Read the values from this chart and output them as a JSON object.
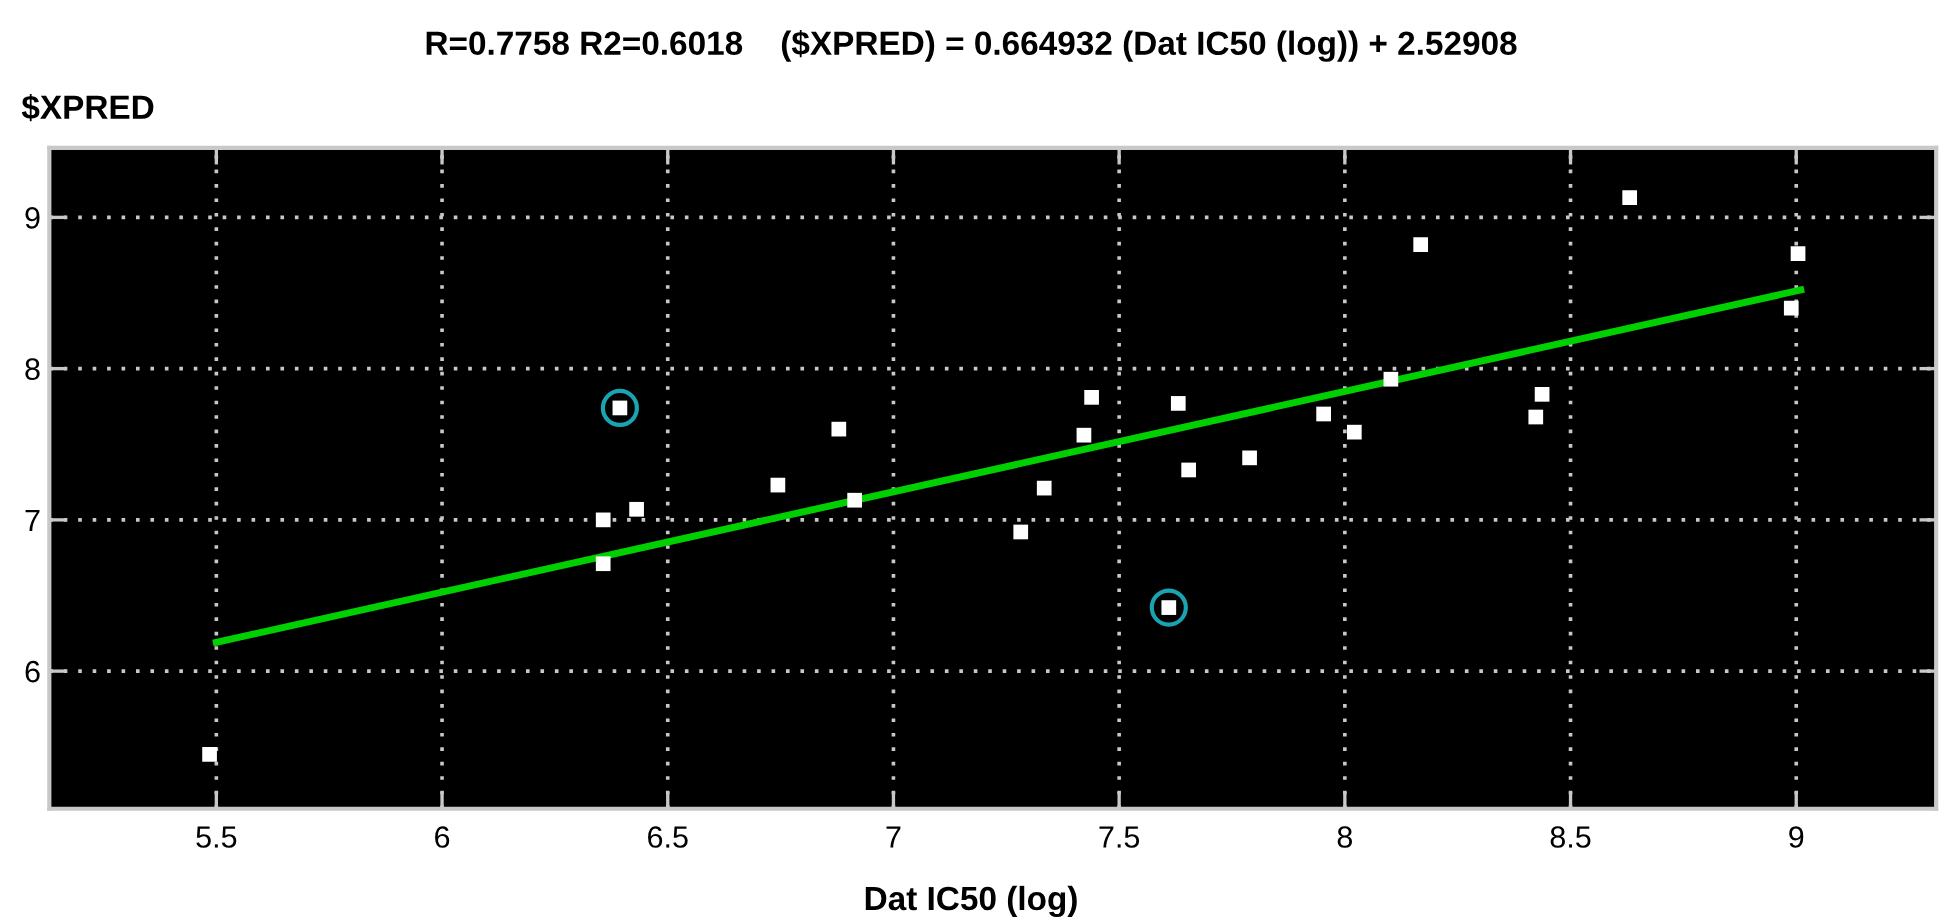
{
  "chart_data": {
    "type": "scatter",
    "title": "R=0.7758 R2=0.6018    ($XPRED) = 0.664932 (Dat IC50 (log)) + 2.52908",
    "xlabel": "Dat IC50 (log)",
    "ylabel": "$XPRED",
    "xlim": [
      5.13,
      9.31
    ],
    "ylim": [
      5.09,
      9.46
    ],
    "xticks": [
      5.5,
      6,
      6.5,
      7,
      7.5,
      8,
      8.5,
      9
    ],
    "yticks": [
      6,
      7,
      8,
      9
    ],
    "grid": true,
    "legend": false,
    "series": [
      {
        "marker": "square",
        "color": "#ffffff",
        "x": [
          5.485,
          6.357,
          6.357,
          6.394,
          6.431,
          6.744,
          6.879,
          6.914,
          7.282,
          7.334,
          7.422,
          7.439,
          7.61,
          7.631,
          7.654,
          7.789,
          7.953,
          8.021,
          8.102,
          8.168,
          8.423,
          8.437,
          8.631,
          9.004,
          8.989
        ],
        "values": [
          5.45,
          7.0,
          6.71,
          7.74,
          7.07,
          7.23,
          7.6,
          7.13,
          6.92,
          7.21,
          7.56,
          7.81,
          6.42,
          7.77,
          7.33,
          7.41,
          7.7,
          7.58,
          7.93,
          8.82,
          7.68,
          7.83,
          9.13,
          8.76,
          8.4
        ]
      },
      {
        "marker": "circle",
        "color": "#1aa3b0",
        "x": [
          6.394,
          7.61
        ],
        "values": [
          7.74,
          6.42
        ]
      },
      {
        "type": "line",
        "marker": "none",
        "line_style": "solid",
        "color": "#00d000",
        "x": [
          5.5,
          9.01
        ],
        "values": [
          6.19,
          8.52
        ]
      }
    ]
  }
}
